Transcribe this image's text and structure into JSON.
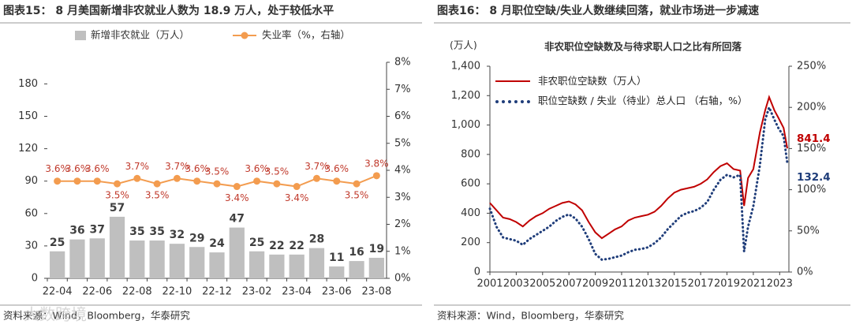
{
  "chart_data": [
    {
      "type": "bar",
      "title": "图表15： 8 月美国新增非农就业人数为 18.9 万人，处于较低水平",
      "source": "资料来源：Wind，Bloomberg，华泰研究",
      "watermark": "大数跨境",
      "categories": [
        "22-04",
        null,
        "22-06",
        null,
        "22-08",
        null,
        "22-10",
        null,
        "22-12",
        null,
        "23-02",
        null,
        "23-04",
        null,
        "23-06",
        null,
        "23-08"
      ],
      "series": [
        {
          "name": "新增非农就业（万人）",
          "type": "bar",
          "color": "#bfbfbf",
          "values": [
            25,
            36,
            37,
            57,
            35,
            35,
            32,
            29,
            24,
            47,
            25,
            22,
            22,
            28,
            11,
            16,
            19
          ]
        },
        {
          "name": "失业率（%，右轴）",
          "type": "line",
          "axis": "y2",
          "color": "#f39c4f",
          "label_color": "#c0392b",
          "values": [
            3.6,
            3.6,
            3.6,
            3.5,
            3.7,
            3.5,
            3.7,
            3.6,
            3.5,
            3.4,
            3.6,
            3.5,
            3.4,
            3.7,
            3.6,
            3.5,
            3.8
          ],
          "value_labels": [
            "3.6%",
            "3.6%",
            "3.6%",
            "3.5%",
            "3.7%",
            "3.5%",
            "3.7%",
            "3.6%",
            "3.5%",
            "3.4%",
            "3.6%",
            "3.5%",
            "3.4%",
            "3.7%",
            "3.6%",
            "3.5%",
            "3.8%"
          ]
        }
      ],
      "ylim": [
        0,
        200
      ],
      "yticks": [
        0,
        30,
        60,
        90,
        120,
        150,
        180
      ],
      "y2lim": [
        0,
        8
      ],
      "y2ticks": [
        {
          "value": 0,
          "label": "0%"
        },
        {
          "value": 1,
          "label": "1%"
        },
        {
          "value": 2,
          "label": "2%"
        },
        {
          "value": 3,
          "label": "3%"
        },
        {
          "value": 4,
          "label": "4%"
        },
        {
          "value": 5,
          "label": "5%"
        },
        {
          "value": 6,
          "label": "6%"
        },
        {
          "value": 7,
          "label": "7%"
        },
        {
          "value": 8,
          "label": "8%"
        }
      ]
    },
    {
      "type": "line",
      "title": "图表16： 8 月职位空缺/失业人数继续回落，就业市场进一步减速",
      "subtitle": "非农职位空缺数及与待求职人口之比有所回落",
      "y_label": "(万人)",
      "source": "资料来源：Wind，Bloomberg，华泰研究",
      "x": [
        2001,
        2001.5,
        2002,
        2002.5,
        2003,
        2003.5,
        2004,
        2004.5,
        2005,
        2005.5,
        2006,
        2006.5,
        2007,
        2007.5,
        2008,
        2008.5,
        2009,
        2009.5,
        2010,
        2010.5,
        2011,
        2011.5,
        2012,
        2012.5,
        2013,
        2013.5,
        2014,
        2014.5,
        2015,
        2015.5,
        2016,
        2016.5,
        2017,
        2017.5,
        2018,
        2018.5,
        2019,
        2019.5,
        2020,
        2020.3,
        2020.6,
        2021,
        2021.5,
        2021.9,
        2022.2,
        2022.6,
        2022.9,
        2023.3,
        2023.58
      ],
      "series": [
        {
          "name": "非农职位空缺数（万人）",
          "color": "#c00000",
          "style": "solid",
          "end_label": "841.4",
          "values": [
            470,
            420,
            370,
            360,
            340,
            310,
            350,
            380,
            400,
            430,
            450,
            470,
            480,
            460,
            420,
            340,
            270,
            230,
            260,
            290,
            310,
            350,
            370,
            380,
            390,
            410,
            450,
            500,
            540,
            560,
            570,
            580,
            600,
            630,
            680,
            720,
            740,
            700,
            690,
            450,
            640,
            700,
            950,
            1100,
            1190,
            1100,
            1050,
            980,
            841.4
          ]
        },
        {
          "name": "职位空缺数 / 失业（待业）总人口 （右轴，%）",
          "color": "#1f3d7a",
          "style": "dotted",
          "axis": "y2",
          "end_label": "132.4",
          "values": [
            77,
            55,
            42,
            40,
            38,
            33,
            40,
            45,
            50,
            55,
            62,
            67,
            70,
            65,
            55,
            40,
            22,
            15,
            16,
            18,
            20,
            24,
            27,
            28,
            30,
            35,
            42,
            52,
            60,
            68,
            72,
            74,
            78,
            85,
            100,
            112,
            118,
            115,
            118,
            25,
            55,
            80,
            130,
            185,
            200,
            185,
            175,
            165,
            132.4
          ]
        }
      ],
      "xlim": [
        2001,
        2023.7
      ],
      "xticks": [
        2001,
        2003,
        2005,
        2007,
        2009,
        2011,
        2013,
        2015,
        2017,
        2019,
        2021,
        2023
      ],
      "ylim": [
        0,
        1400
      ],
      "yticks": [
        0,
        200,
        400,
        600,
        800,
        {
          "value": 1000,
          "label": "1,000"
        },
        {
          "value": 1200,
          "label": "1,200"
        },
        {
          "value": 1400,
          "label": "1,400"
        }
      ],
      "y2lim": [
        0,
        250
      ],
      "y2ticks": [
        {
          "value": 0,
          "label": "0%"
        },
        {
          "value": 50,
          "label": "50%"
        },
        {
          "value": 100,
          "label": "100%"
        },
        {
          "value": 150,
          "label": "150%"
        },
        {
          "value": 200,
          "label": "200%"
        },
        {
          "value": 250,
          "label": "250%"
        }
      ]
    }
  ]
}
